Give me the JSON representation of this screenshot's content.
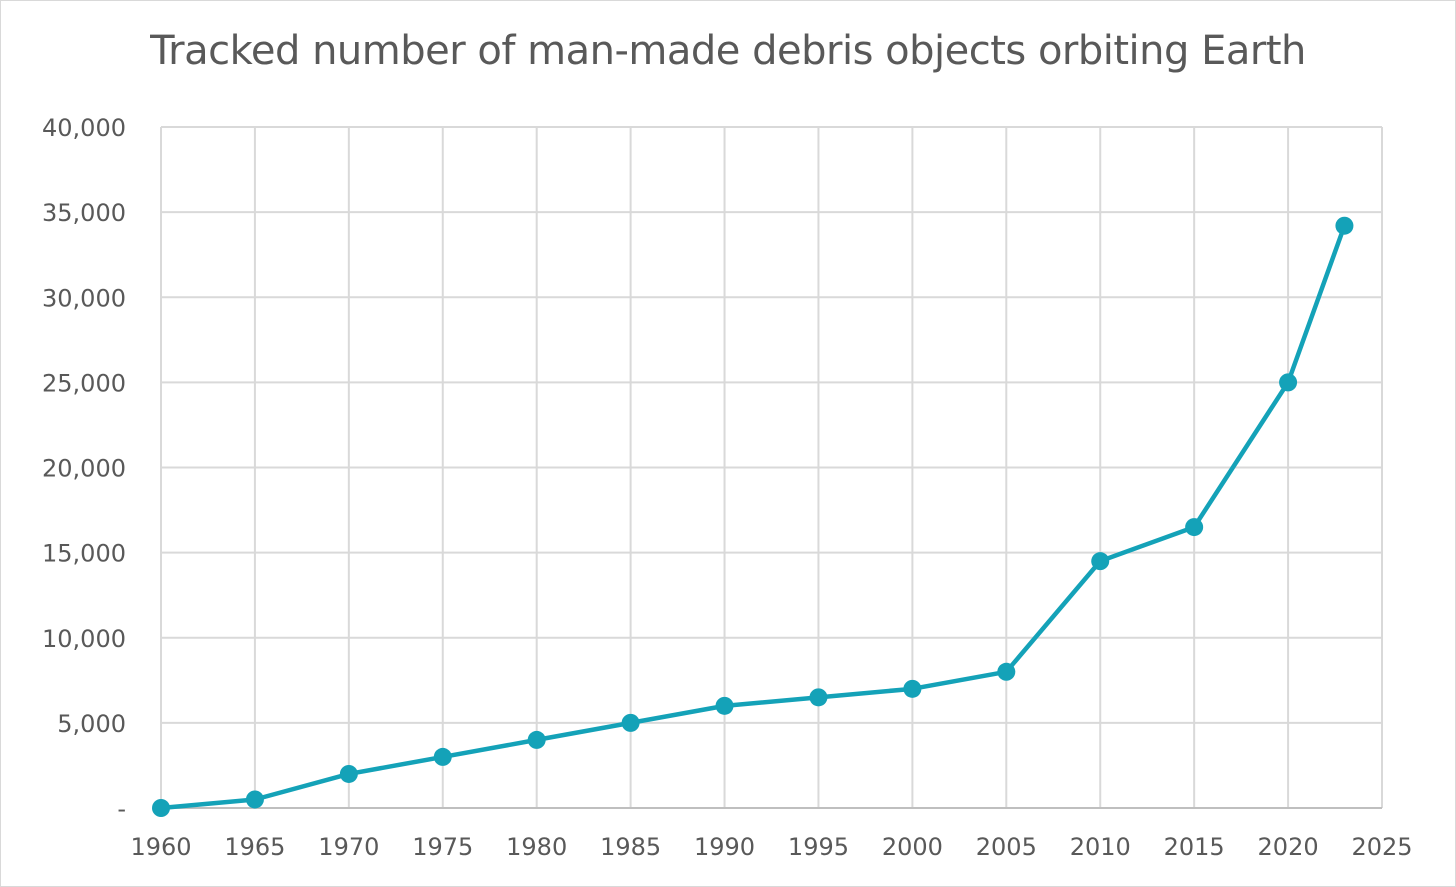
{
  "chart_data": {
    "type": "line",
    "title": "Tracked number of man-made debris objects orbiting Earth",
    "xlabel": "",
    "ylabel": "",
    "xlim": [
      1960,
      2025
    ],
    "ylim": [
      0,
      40000
    ],
    "x_ticks": [
      "1960",
      "1965",
      "1970",
      "1975",
      "1980",
      "1985",
      "1990",
      "1995",
      "2000",
      "2005",
      "2010",
      "2015",
      "2020",
      "2025"
    ],
    "y_ticks": [
      "-",
      "5,000",
      "10,000",
      "15,000",
      "20,000",
      "25,000",
      "30,000",
      "35,000",
      "40,000"
    ],
    "grid": true,
    "legend": "none",
    "series": [
      {
        "color": "#14a2b8",
        "x": [
          1960,
          1965,
          1970,
          1975,
          1980,
          1985,
          1990,
          1995,
          2000,
          2005,
          2010,
          2015,
          2020,
          2023
        ],
        "y": [
          0,
          500,
          2000,
          3000,
          4000,
          5000,
          6000,
          6500,
          7000,
          8000,
          14500,
          16500,
          25000,
          34200
        ]
      }
    ]
  }
}
